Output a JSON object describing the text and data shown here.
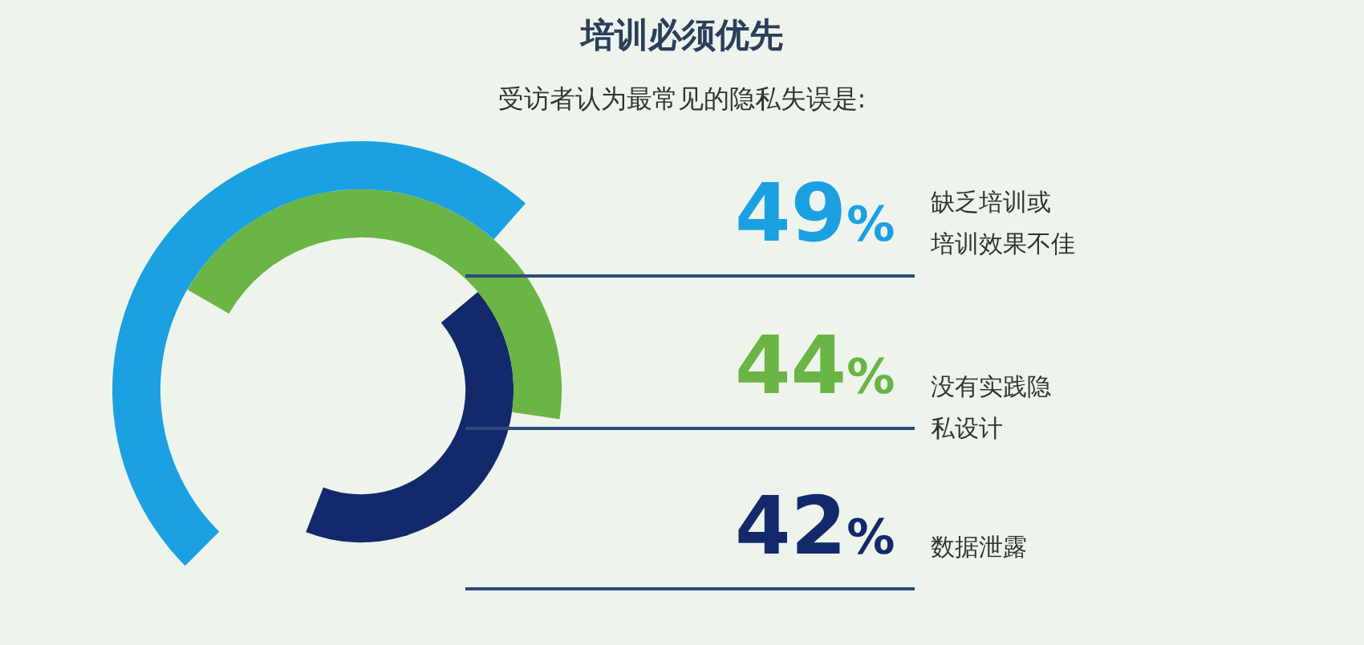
{
  "chart_data": {
    "type": "other",
    "title": "培训必须优先",
    "subtitle": "受访者认为最常见的隐私失误是:",
    "categories": [
      "缺乏培训或培训效果不佳",
      "没有实践隐私设计",
      "数据泄露"
    ],
    "values": [
      49,
      44,
      42
    ],
    "colors": [
      "#1ba1e2",
      "#6ab545",
      "#14296b"
    ],
    "value_labels": [
      "49%",
      "44%",
      "42%"
    ],
    "legend": false
  }
}
